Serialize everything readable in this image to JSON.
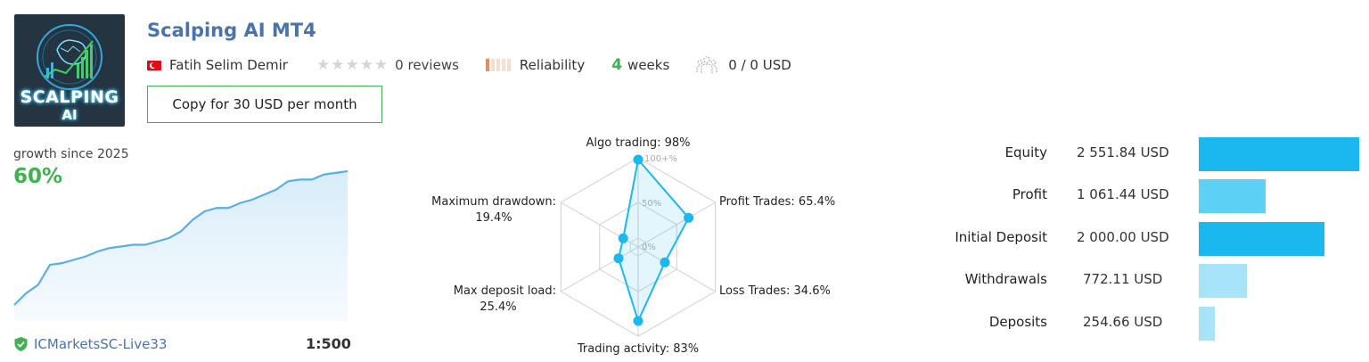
{
  "header": {
    "logo_line1": "SCALPING",
    "logo_line2": "AI",
    "title": "Scalping AI MT4",
    "author": "Fatih Selim Demir",
    "reviews": "0 reviews",
    "reliability_label": "Reliability",
    "reliability_level": 0.2,
    "weeks_num": "4",
    "weeks_label": "weeks",
    "subscribers": "0 / 0 USD",
    "copy_button": "Copy for 30 USD per month"
  },
  "growth": {
    "label": "growth since 2025",
    "value": "60%",
    "server": "ICMarketsSC-Live33",
    "leverage": "1:500",
    "series": [
      0,
      7,
      12,
      24,
      25,
      27,
      29,
      32,
      34,
      35,
      36,
      36,
      38,
      40,
      44,
      51,
      56,
      58,
      58,
      61,
      63,
      66,
      69,
      74,
      75,
      75,
      78,
      79,
      80
    ]
  },
  "radar": {
    "scale_max": "100+%",
    "scale_mid": "50%",
    "scale_min": "0%",
    "axes": [
      {
        "label": "Algo trading: 98%",
        "value": 98
      },
      {
        "label": "Profit Trades: 65.4%",
        "value": 65.4
      },
      {
        "label": "Loss Trades: 34.6%",
        "value": 34.6
      },
      {
        "label": "Trading activity: 83%",
        "value": 83
      },
      {
        "label_line1": "Max deposit load:",
        "label_line2": "25.4%",
        "value": 25.4
      },
      {
        "label_line1": "Maximum drawdown:",
        "label_line2": "19.4%",
        "value": 19.4
      }
    ]
  },
  "balance": [
    {
      "label": "Equity",
      "value": "2 551.84 USD",
      "amount": 2551.84,
      "color": "#1ab8ee"
    },
    {
      "label": "Profit",
      "value": "1 061.44 USD",
      "amount": 1061.44,
      "color": "#5cd0f5"
    },
    {
      "label": "Initial Deposit",
      "value": "2 000.00 USD",
      "amount": 2000.0,
      "color": "#1ab8ee"
    },
    {
      "label": "Withdrawals",
      "value": "772.11 USD",
      "amount": 772.11,
      "color": "#a8e4f9"
    },
    {
      "label": "Deposits",
      "value": "254.66 USD",
      "amount": 254.66,
      "color": "#a8e4f9"
    }
  ]
}
